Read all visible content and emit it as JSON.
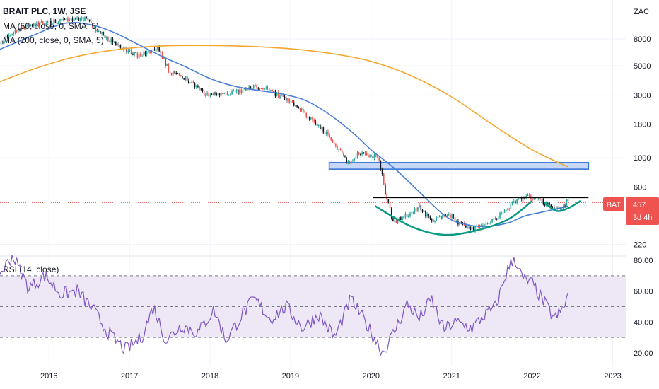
{
  "colors": {
    "up": "#26a69a",
    "down": "#ef5350",
    "candle_dark": "#131722",
    "ma50": "#4a7fd6",
    "ma200": "#f3a72f",
    "rsi_line": "#7e57c2",
    "rsi_band": "#ede7f6",
    "zone_fill": "#c6d8f5",
    "zone_stroke": "#2f6fd6",
    "resistance": "#000000",
    "cup": "#089981",
    "price_line": "#ef5350",
    "badge": "#ef5350",
    "grid": "#f0f3fa",
    "axis_text": "#131722"
  },
  "chart_data": [
    {
      "type": "candlestick",
      "title": "BRAIT PLC, 1W, JSE",
      "symbol": "BAT",
      "last_price": "457",
      "countdown": "3d 4h",
      "currency_label": "ZAC",
      "y_scale": "log",
      "y_range": [
        180,
        14000
      ],
      "x_range": [
        2015.35,
        2023.25
      ],
      "y_ticks": [
        "8000",
        "5000",
        "3000",
        "1800",
        "1000",
        "600",
        "220"
      ],
      "x_ticks": [
        "2016",
        "2017",
        "2018",
        "2019",
        "2020",
        "2021",
        "2022",
        "2023"
      ],
      "indicators": [
        "MA (50, close, 0, SMA, 5)",
        "MA (200, close, 0, SMA, 5)"
      ],
      "price_path": [
        [
          2015.35,
          7000
        ],
        [
          2015.6,
          9500
        ],
        [
          2015.9,
          10500
        ],
        [
          2016.2,
          11000
        ],
        [
          2016.45,
          11500
        ],
        [
          2016.6,
          9200
        ],
        [
          2016.9,
          6800
        ],
        [
          2017.1,
          6000
        ],
        [
          2017.35,
          6800
        ],
        [
          2017.5,
          4500
        ],
        [
          2017.7,
          4000
        ],
        [
          2017.95,
          3000
        ],
        [
          2018.2,
          3100
        ],
        [
          2018.4,
          3200
        ],
        [
          2018.6,
          3500
        ],
        [
          2018.8,
          3100
        ],
        [
          2019.0,
          2700
        ],
        [
          2019.2,
          2100
        ],
        [
          2019.4,
          1650
        ],
        [
          2019.6,
          1150
        ],
        [
          2019.72,
          920
        ],
        [
          2019.85,
          1100
        ],
        [
          2019.98,
          1050
        ],
        [
          2020.1,
          1000
        ],
        [
          2020.18,
          520
        ],
        [
          2020.28,
          320
        ],
        [
          2020.45,
          370
        ],
        [
          2020.6,
          430
        ],
        [
          2020.75,
          330
        ],
        [
          2020.95,
          380
        ],
        [
          2021.15,
          300
        ],
        [
          2021.3,
          290
        ],
        [
          2021.5,
          330
        ],
        [
          2021.65,
          390
        ],
        [
          2021.82,
          480
        ],
        [
          2021.95,
          510
        ],
        [
          2022.1,
          470
        ],
        [
          2022.25,
          420
        ],
        [
          2022.38,
          430
        ],
        [
          2022.45,
          480
        ]
      ],
      "series": [
        {
          "name": "MA (50, close, 0, SMA, 5)",
          "points": [
            [
              2015.35,
              6500
            ],
            [
              2015.8,
              8500
            ],
            [
              2016.2,
              10500
            ],
            [
              2016.5,
              10300
            ],
            [
              2016.8,
              9000
            ],
            [
              2017.1,
              7300
            ],
            [
              2017.4,
              5900
            ],
            [
              2017.7,
              4900
            ],
            [
              2018.0,
              4000
            ],
            [
              2018.3,
              3500
            ],
            [
              2018.6,
              3250
            ],
            [
              2018.9,
              3050
            ],
            [
              2019.2,
              2700
            ],
            [
              2019.5,
              2100
            ],
            [
              2019.8,
              1500
            ],
            [
              2020.0,
              1150
            ],
            [
              2020.3,
              820
            ],
            [
              2020.6,
              550
            ],
            [
              2020.9,
              370
            ],
            [
              2021.1,
              320
            ],
            [
              2021.4,
              300
            ],
            [
              2021.7,
              320
            ],
            [
              2021.9,
              360
            ],
            [
              2022.15,
              390
            ],
            [
              2022.45,
              430
            ]
          ]
        },
        {
          "name": "MA (200, close, 0, SMA, 5)",
          "points": [
            [
              2015.35,
              3700
            ],
            [
              2015.8,
              4700
            ],
            [
              2016.3,
              5800
            ],
            [
              2016.9,
              6700
            ],
            [
              2017.5,
              7100
            ],
            [
              2018.2,
              7100
            ],
            [
              2018.9,
              6800
            ],
            [
              2019.5,
              6200
            ],
            [
              2020.0,
              5400
            ],
            [
              2020.5,
              4200
            ],
            [
              2021.0,
              2900
            ],
            [
              2021.5,
              1800
            ],
            [
              2022.0,
              1150
            ],
            [
              2022.45,
              850
            ]
          ]
        }
      ],
      "annotations": {
        "support_zone": {
          "x": [
            2019.48,
            2022.7
          ],
          "y": [
            820,
            920
          ]
        },
        "resistance_line": {
          "x": [
            2020.02,
            2022.7
          ],
          "y": 500
        },
        "cup": [
          [
            2020.05,
            430
          ],
          [
            2020.5,
            300
          ],
          [
            2020.9,
            260
          ],
          [
            2021.3,
            280
          ],
          [
            2021.7,
            340
          ],
          [
            2022.0,
            470
          ]
        ],
        "handle": [
          [
            2022.15,
            460
          ],
          [
            2022.3,
            395
          ],
          [
            2022.45,
            415
          ],
          [
            2022.6,
            470
          ]
        ]
      }
    },
    {
      "type": "line",
      "title": "RSI (14, close)",
      "y_range": [
        16,
        84
      ],
      "y_ticks": [
        "80.00",
        "60.00",
        "40.00",
        "20.00"
      ],
      "band": [
        30,
        70
      ],
      "dashed_levels": [
        70,
        50,
        30
      ],
      "series": [
        {
          "name": "RSI (14, close)",
          "points": [
            [
              2015.35,
              68
            ],
            [
              2015.55,
              83
            ],
            [
              2015.75,
              62
            ],
            [
              2015.95,
              70
            ],
            [
              2016.15,
              58
            ],
            [
              2016.35,
              60
            ],
            [
              2016.55,
              48
            ],
            [
              2016.75,
              32
            ],
            [
              2016.95,
              22
            ],
            [
              2017.15,
              30
            ],
            [
              2017.3,
              50
            ],
            [
              2017.45,
              28
            ],
            [
              2017.65,
              38
            ],
            [
              2017.85,
              33
            ],
            [
              2018.05,
              48
            ],
            [
              2018.2,
              28
            ],
            [
              2018.4,
              45
            ],
            [
              2018.55,
              55
            ],
            [
              2018.75,
              42
            ],
            [
              2018.95,
              50
            ],
            [
              2019.15,
              36
            ],
            [
              2019.35,
              45
            ],
            [
              2019.55,
              30
            ],
            [
              2019.75,
              55
            ],
            [
              2019.95,
              38
            ],
            [
              2020.15,
              20
            ],
            [
              2020.3,
              35
            ],
            [
              2020.45,
              52
            ],
            [
              2020.6,
              42
            ],
            [
              2020.75,
              55
            ],
            [
              2020.9,
              35
            ],
            [
              2021.05,
              40
            ],
            [
              2021.25,
              36
            ],
            [
              2021.4,
              44
            ],
            [
              2021.55,
              50
            ],
            [
              2021.68,
              72
            ],
            [
              2021.78,
              82
            ],
            [
              2021.88,
              68
            ],
            [
              2022.0,
              65
            ],
            [
              2022.12,
              55
            ],
            [
              2022.28,
              42
            ],
            [
              2022.38,
              48
            ],
            [
              2022.45,
              58
            ]
          ]
        }
      ]
    }
  ]
}
